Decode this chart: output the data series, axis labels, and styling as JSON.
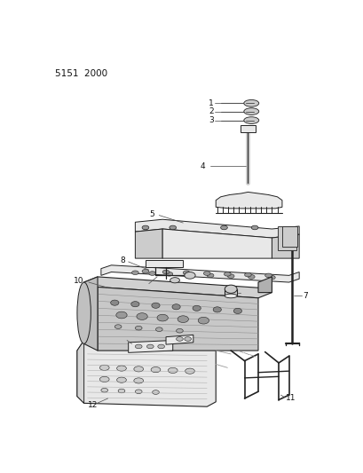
{
  "title": "5151 2000",
  "bg_color": "#ffffff",
  "line_color": "#555555",
  "dark_line": "#222222",
  "label_color": "#111111",
  "fill_light": "#e8e8e8",
  "fill_medium": "#cccccc",
  "fill_dark": "#999999",
  "fill_black": "#444444"
}
